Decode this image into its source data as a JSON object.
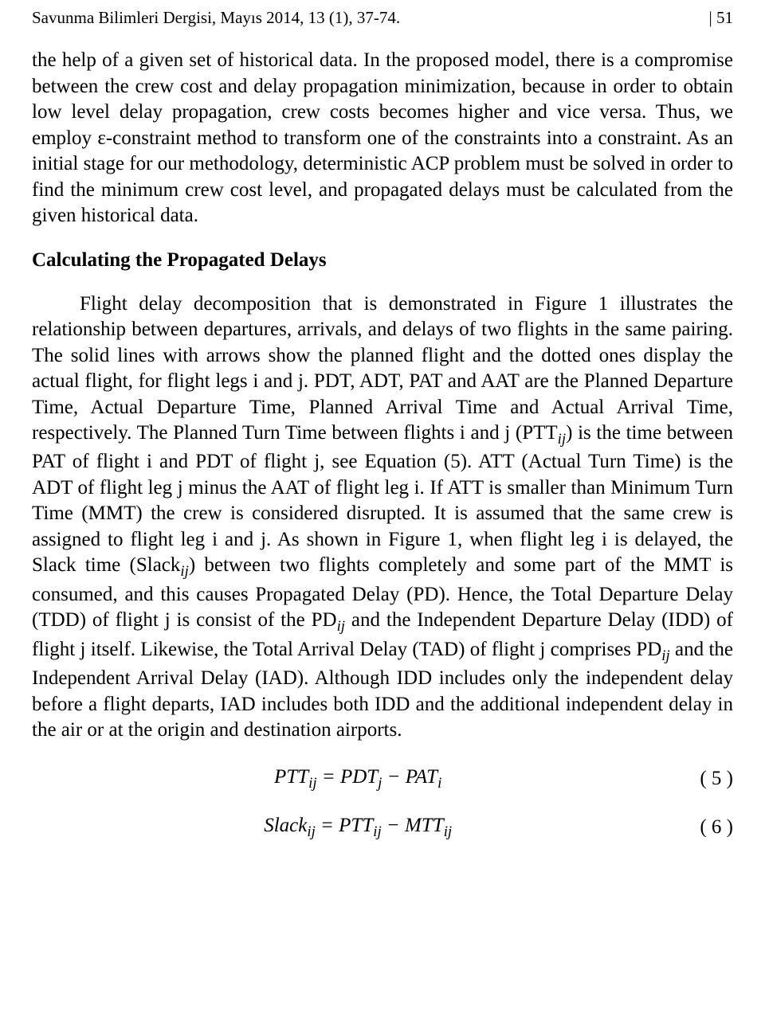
{
  "header": {
    "journal": "Savunma Bilimleri Dergisi, Mayıs 2014, 13 (1), 37-74.",
    "page_marker": "| 51"
  },
  "body": {
    "para1": "the help of a given set of historical data. In the proposed model, there is a compromise between the crew cost and delay propagation minimization, because in order to obtain low level delay propagation, crew costs becomes higher and vice versa. Thus, we employ ε-constraint method to transform one of the constraints into a constraint. As an initial stage for our methodology, deterministic ACP problem must be solved in order to find the minimum crew cost level, and propagated delays must be calculated from the given historical data.",
    "heading1": "Calculating the Propagated Delays",
    "para2_part1": "Flight delay decomposition that is demonstrated in Figure 1 illustrates the relationship between departures, arrivals, and delays of two flights in the same pairing. The solid lines with arrows show the planned flight and the dotted ones display the actual flight, for flight legs i and j. PDT, ADT, PAT and AAT are the Planned Departure Time, Actual Departure Time, Planned Arrival Time and Actual Arrival Time, respectively. The Planned Turn Time between flights i and j (PTT",
    "para2_sub1": "ij",
    "para2_part2": ") is the time between PAT of flight i and PDT of flight j, see Equation (5). ATT (Actual Turn Time) is the ADT of flight leg j minus the AAT of flight leg i. If ATT is smaller than Minimum Turn Time (MMT) the crew is considered disrupted. It is assumed that the same crew is assigned to flight leg i and j. As shown in Figure 1, when flight leg i is delayed, the Slack time (Slack",
    "para2_sub2": "ij",
    "para2_part3": ") between two flights completely and some part of the MMT is consumed, and this causes Propagated Delay (PD). Hence, the Total Departure Delay (TDD) of flight j is consist of the PD",
    "para2_sub3": "ij",
    "para2_part4": " and the Independent Departure Delay (IDD) of flight j itself. Likewise, the Total Arrival Delay (TAD) of flight j comprises PD",
    "para2_sub4": "ij",
    "para2_part5": " and the Independent Arrival Delay (IAD). Although IDD includes only the independent delay before a flight departs, IAD includes both IDD and the additional independent delay in the air or at the origin and destination airports."
  },
  "equations": {
    "eq5": {
      "lhs_base": "PTT",
      "lhs_sub": "ij",
      "eq": " = ",
      "r1_base": "PDT",
      "r1_sub": "j",
      "minus": " − ",
      "r2_base": "PAT",
      "r2_sub": "i",
      "number": "( 5 )"
    },
    "eq6": {
      "lhs_base": "Slack",
      "lhs_sub": "ij",
      "eq": " = ",
      "r1_base": "PTT",
      "r1_sub": "ij",
      "minus": " − ",
      "r2_base": "MTT",
      "r2_sub": "ij",
      "number": "( 6 )"
    }
  }
}
